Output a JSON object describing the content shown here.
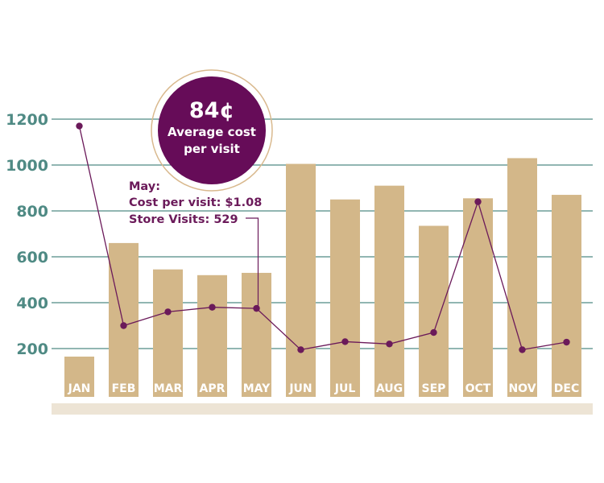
{
  "chart_data": {
    "type": "bar",
    "categories": [
      "JAN",
      "FEB",
      "MAR",
      "APR",
      "MAY",
      "JUN",
      "JUL",
      "AUG",
      "SEP",
      "OCT",
      "NOV",
      "DEC"
    ],
    "yticks": [
      "200",
      "400",
      "600",
      "800",
      "1000",
      "1200"
    ],
    "ylim": [
      0,
      1200
    ],
    "grid": true,
    "series": [
      {
        "type": "bar",
        "values": [
          165,
          660,
          545,
          520,
          530,
          1005,
          850,
          910,
          735,
          855,
          1030,
          870
        ]
      },
      {
        "type": "line",
        "values": [
          1170,
          300,
          360,
          380,
          375,
          195,
          230,
          220,
          270,
          840,
          195,
          228
        ]
      }
    ],
    "badge": {
      "value": "84¢",
      "line1": "Average cost",
      "line2": "per visit"
    },
    "annotation": {
      "category": "MAY",
      "line1": "May:",
      "line2": "Cost per visit: $1.08",
      "line3": "Store Visits: 529"
    },
    "colors": {
      "bar": "#d3b789",
      "line": "#6b1a5a",
      "grid": "#4f8a84",
      "axis_band": "#ede4d5",
      "badge_fill": "#660c58",
      "badge_ring": "#d9b98e",
      "label": "#ffffff"
    }
  }
}
